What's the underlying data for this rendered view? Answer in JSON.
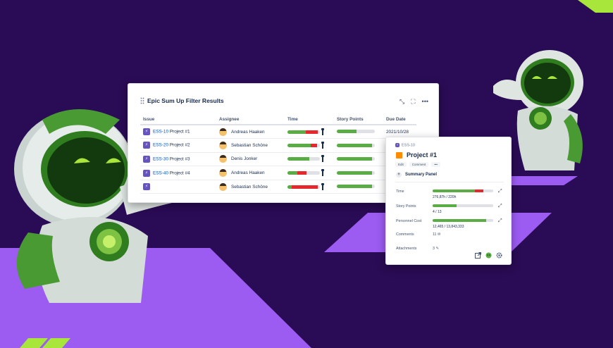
{
  "filter_panel": {
    "title": "Epic Sum Up Filter Results",
    "columns": [
      "Issue",
      "Assignee",
      "Time",
      "Story Points",
      "Due Date"
    ],
    "rows": [
      {
        "key": "ESS-10",
        "summary": "Project #1",
        "assignee": "Andreas Haaken",
        "time_green": 0.56,
        "time_red": 0.38,
        "sp": 0.52,
        "due": "2021/10/28"
      },
      {
        "key": "ESS-20",
        "summary": "Project #2",
        "assignee": "Sebastian Schöne",
        "time_green": 0.72,
        "time_red": 0.2,
        "sp": 0.92,
        "due": ""
      },
      {
        "key": "ESS-30",
        "summary": "Project #3",
        "assignee": "Denis Jonker",
        "time_green": 0.68,
        "time_red": 0.0,
        "sp": 0.93,
        "due": ""
      },
      {
        "key": "ESS-40",
        "summary": "Project #4",
        "assignee": "Andreas Haaken",
        "time_green": 0.3,
        "time_red": 0.28,
        "sp": 0.93,
        "due": ""
      },
      {
        "key": "",
        "summary": "",
        "assignee": "Sebastian Schöne",
        "time_green": 0.14,
        "time_red": 0.8,
        "sp": 0.93,
        "due": ""
      }
    ],
    "icons": [
      "collapse-icon",
      "fullscreen-icon",
      "more-icon"
    ]
  },
  "detail_panel": {
    "key": "ESS-10",
    "title": "Project #1",
    "actions": [
      "Edit",
      "Comment",
      "•••"
    ],
    "panel_label": "Summary Panel",
    "fields": {
      "time": {
        "label": "Time",
        "value": "276,87h / 220h",
        "green": 0.7,
        "red": 0.14
      },
      "story_points": {
        "label": "Story Points",
        "value": "4 / 13",
        "green": 0.4
      },
      "personnel_cost": {
        "label": "Personnel Cost",
        "value": "12,465 / 13,843,333",
        "green": 0.88
      },
      "comments": {
        "label": "Comments",
        "value": "11"
      },
      "attachments": {
        "label": "Attachments",
        "value": "3"
      }
    }
  },
  "colors": {
    "background": "#2a0b55",
    "accent_purple": "#9c5cf2",
    "accent_lime": "#a8e63c",
    "bar_green": "#5aac44",
    "bar_red": "#e5282e",
    "project_orange": "#ff8b00"
  }
}
